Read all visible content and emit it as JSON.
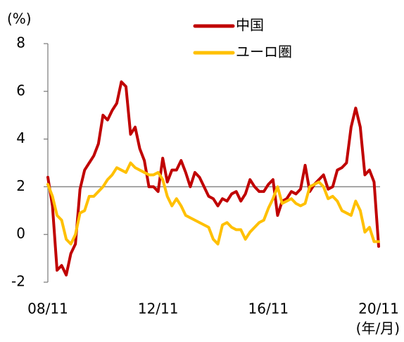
{
  "chart_data": {
    "type": "line",
    "y_unit_label": "(%)",
    "x_unit_label": "(年/月)",
    "categories": [
      "08/11",
      null,
      null,
      null,
      null,
      null,
      null,
      null,
      null,
      null,
      null,
      null,
      null,
      null,
      null,
      null,
      null,
      null,
      null,
      null,
      null,
      null,
      null,
      null,
      "12/11",
      null,
      null,
      null,
      null,
      null,
      null,
      null,
      null,
      null,
      null,
      null,
      null,
      null,
      null,
      null,
      null,
      null,
      null,
      null,
      null,
      null,
      null,
      null,
      "16/11",
      null,
      null,
      null,
      null,
      null,
      null,
      null,
      null,
      null,
      null,
      null,
      null,
      null,
      null,
      null,
      null,
      null,
      null,
      null,
      null,
      null,
      null,
      null,
      "20/11"
    ],
    "series": [
      {
        "name": "中国",
        "color": "#c00000",
        "values": [
          2.4,
          1.2,
          -1.5,
          -1.3,
          -1.7,
          -0.8,
          -0.4,
          1.9,
          2.7,
          3.0,
          3.3,
          3.8,
          5.0,
          4.8,
          5.2,
          5.5,
          6.4,
          6.2,
          4.2,
          4.5,
          3.6,
          3.1,
          2.0,
          2.0,
          1.8,
          3.2,
          2.2,
          2.7,
          2.7,
          3.1,
          2.6,
          2.0,
          2.6,
          2.4,
          2.0,
          1.6,
          1.5,
          1.2,
          1.5,
          1.4,
          1.7,
          1.8,
          1.4,
          1.7,
          2.3,
          2.0,
          1.8,
          1.8,
          2.1,
          2.3,
          0.8,
          1.4,
          1.5,
          1.8,
          1.7,
          1.9,
          2.9,
          1.8,
          2.1,
          2.3,
          2.5,
          1.9,
          2.0,
          2.7,
          2.8,
          3.0,
          4.5,
          5.3,
          4.5,
          2.5,
          2.7,
          2.2,
          -0.5
        ]
      },
      {
        "name": "ユーロ圏",
        "color": "#ffc000",
        "values": [
          2.1,
          1.6,
          0.8,
          0.6,
          -0.2,
          -0.4,
          0.0,
          0.9,
          1.0,
          1.6,
          1.6,
          1.8,
          2.0,
          2.3,
          2.5,
          2.8,
          2.7,
          2.6,
          3.0,
          2.8,
          2.7,
          2.6,
          2.5,
          2.5,
          2.6,
          2.3,
          1.6,
          1.2,
          1.5,
          1.2,
          0.8,
          0.7,
          0.6,
          0.5,
          0.4,
          0.3,
          -0.2,
          -0.4,
          0.4,
          0.5,
          0.3,
          0.2,
          0.2,
          -0.2,
          0.1,
          0.3,
          0.5,
          0.6,
          1.1,
          1.5,
          2.0,
          1.3,
          1.4,
          1.5,
          1.3,
          1.2,
          1.3,
          2.0,
          2.1,
          2.2,
          2.0,
          1.5,
          1.6,
          1.4,
          1.0,
          0.9,
          0.8,
          1.4,
          1.0,
          0.1,
          0.3,
          -0.3,
          -0.3
        ]
      }
    ],
    "ylim": [
      -2,
      8
    ],
    "yticks": [
      -2,
      0,
      2,
      4,
      6,
      8
    ],
    "reference_line": 2
  }
}
